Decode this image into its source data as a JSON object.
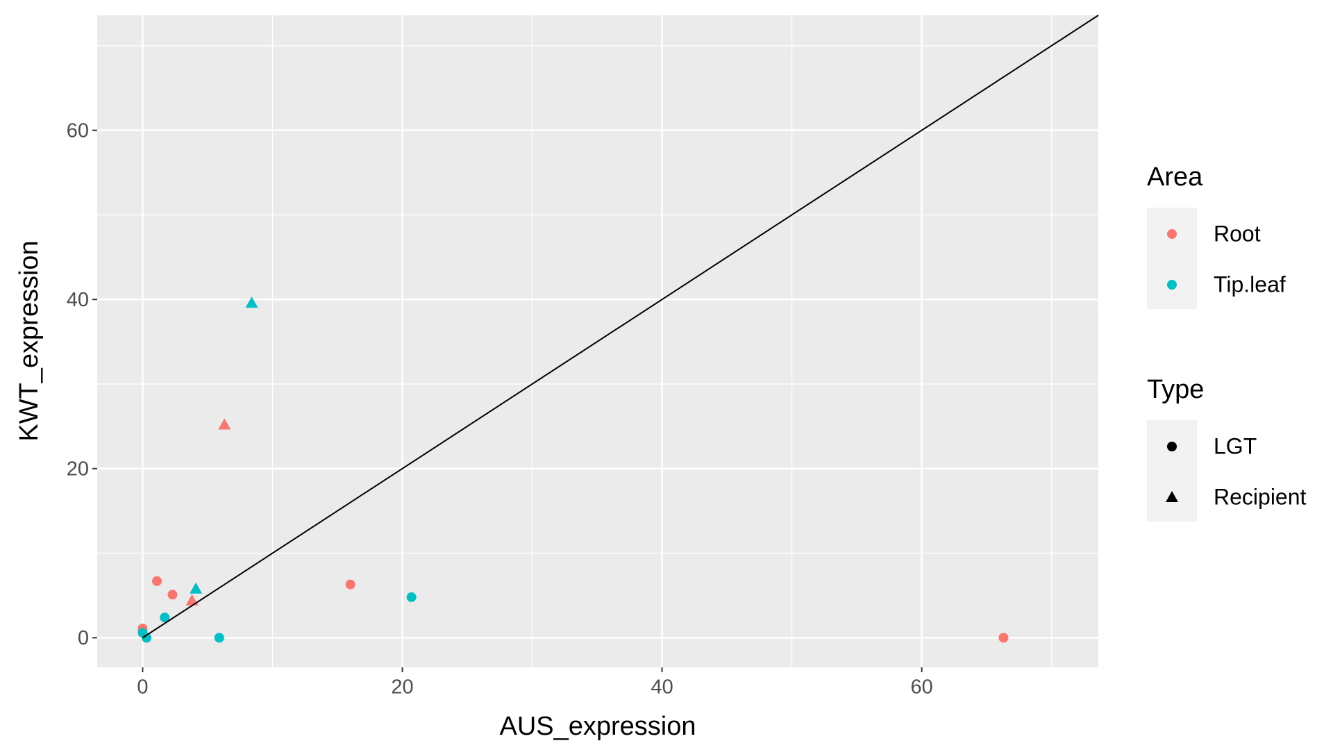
{
  "chart_data": {
    "type": "scatter",
    "x_label": "AUS_expression",
    "y_label": "KWT_expression",
    "xlim": [
      -3.5,
      73.6
    ],
    "ylim": [
      -3.5,
      73.6
    ],
    "xticks": [
      0,
      20,
      40,
      60
    ],
    "yticks": [
      0,
      20,
      40,
      60
    ],
    "x_minor_grid": [
      10,
      30,
      50,
      70
    ],
    "y_minor_grid": [
      10,
      30,
      50,
      70
    ],
    "grid": true,
    "legends": [
      {
        "title": "Area",
        "entries": [
          {
            "label": "Root",
            "color": "#F8766D"
          },
          {
            "label": "Tip.leaf",
            "color": "#00BFC4"
          }
        ]
      },
      {
        "title": "Type",
        "entries": [
          {
            "label": "LGT",
            "shape": "circle"
          },
          {
            "label": "Recipient",
            "shape": "triangle"
          }
        ]
      }
    ],
    "series": [
      {
        "area": "Root",
        "type": "LGT",
        "x": [
          0,
          1.1,
          2.3,
          16.0,
          66.3
        ],
        "values": [
          1.1,
          6.7,
          5.1,
          6.3,
          0
        ]
      },
      {
        "area": "Root",
        "type": "Recipient",
        "x": [
          3.8,
          6.3
        ],
        "values": [
          4.4,
          25.2
        ]
      },
      {
        "area": "Tip.leaf",
        "type": "LGT",
        "x": [
          0,
          0.3,
          1.7,
          5.9,
          20.7
        ],
        "values": [
          0.6,
          0,
          2.4,
          0,
          4.8
        ]
      },
      {
        "area": "Tip.leaf",
        "type": "Recipient",
        "x": [
          4.1,
          8.4
        ],
        "values": [
          5.8,
          39.6
        ]
      }
    ],
    "reference_line": {
      "x": [
        0,
        73.6
      ],
      "y": [
        0,
        73.6
      ],
      "color": "#000000"
    }
  }
}
